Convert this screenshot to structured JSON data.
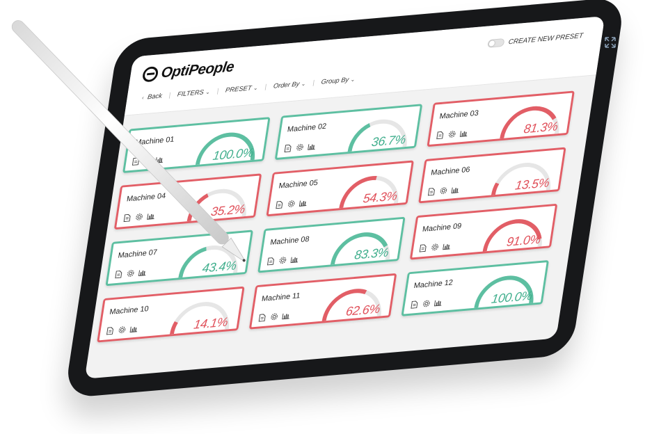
{
  "app": {
    "logo_text": "OptiPeople",
    "create_preset_label": "CREATE NEW PRESET"
  },
  "nav": {
    "back": "Back",
    "filters": "FILTERS",
    "preset": "PRESET",
    "order_by": "Order By",
    "group_by": "Group By"
  },
  "colors": {
    "good": "#5dbfa1",
    "bad": "#e25e66"
  },
  "machines": [
    {
      "name": "Machine 01",
      "value": "100.0%",
      "pct": 100.0,
      "status": "good"
    },
    {
      "name": "Machine 02",
      "value": "36.7%",
      "pct": 36.7,
      "status": "good"
    },
    {
      "name": "Machine 03",
      "value": "81.3%",
      "pct": 81.3,
      "status": "bad"
    },
    {
      "name": "Machine 04",
      "value": "35.2%",
      "pct": 35.2,
      "status": "bad"
    },
    {
      "name": "Machine 05",
      "value": "54.3%",
      "pct": 54.3,
      "status": "bad"
    },
    {
      "name": "Machine 06",
      "value": "13.5%",
      "pct": 13.5,
      "status": "bad"
    },
    {
      "name": "Machine 07",
      "value": "43.4%",
      "pct": 43.4,
      "status": "good"
    },
    {
      "name": "Machine 08",
      "value": "83.3%",
      "pct": 83.3,
      "status": "good"
    },
    {
      "name": "Machine 09",
      "value": "91.0%",
      "pct": 91.0,
      "status": "bad"
    },
    {
      "name": "Machine 10",
      "value": "14.1%",
      "pct": 14.1,
      "status": "bad"
    },
    {
      "name": "Machine 11",
      "value": "62.6%",
      "pct": 62.6,
      "status": "bad"
    },
    {
      "name": "Machine 12",
      "value": "100.0%",
      "pct": 100.0,
      "status": "good"
    }
  ],
  "icons": [
    "document-icon",
    "gear-icon",
    "bar-chart-icon",
    "expand-icon",
    "back-chevron-icon"
  ]
}
